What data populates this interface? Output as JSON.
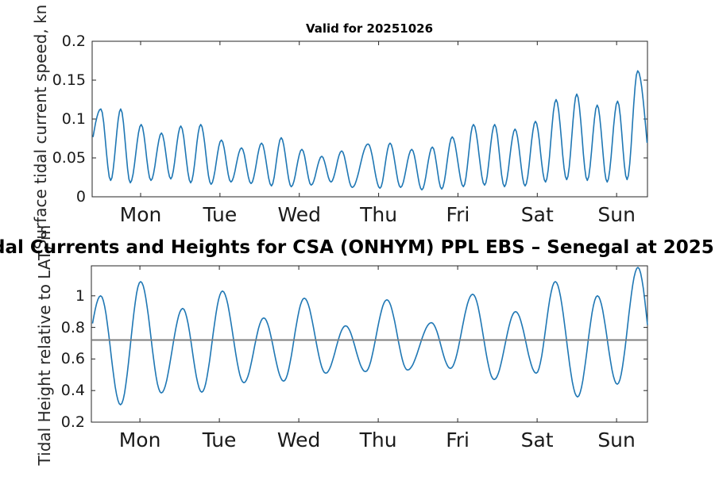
{
  "figure": {
    "main_title": "dal Currents and Heights for CSA (ONHYM) PPL EBS  – Senegal at 2025",
    "background": "#ffffff",
    "axis_color": "#262626",
    "text_color": "#1a1a1a"
  },
  "chart_data": [
    {
      "type": "line",
      "title": "Valid for 20251026",
      "ylabel": "Surface tidal current speed, kn",
      "xlim_days": [
        0,
        7
      ],
      "ylim": [
        0,
        0.2
      ],
      "yticks": [
        0,
        0.05,
        0.1,
        0.15,
        0.2
      ],
      "ytick_labels": [
        "0",
        "0.05",
        "0.1",
        "0.15",
        "0.2"
      ],
      "xtick_days": [
        0.611,
        1.611,
        2.611,
        3.611,
        4.611,
        5.611,
        6.611
      ],
      "xtick_labels": [
        "Mon",
        "Tue",
        "Wed",
        "Thu",
        "Fri",
        "Sat",
        "Sun"
      ],
      "grid": false,
      "legend": null,
      "line_color": "#1f77b4",
      "series": [
        {
          "name": "surface tidal current speed",
          "extrema_day_value": [
            [
              -0.12,
              0.02
            ],
            [
              0.11,
              0.113
            ],
            [
              0.233,
              0.021
            ],
            [
              0.36,
              0.113
            ],
            [
              0.481,
              0.018
            ],
            [
              0.618,
              0.093
            ],
            [
              0.741,
              0.021
            ],
            [
              0.874,
              0.082
            ],
            [
              0.991,
              0.023
            ],
            [
              1.118,
              0.091
            ],
            [
              1.242,
              0.018
            ],
            [
              1.369,
              0.093
            ],
            [
              1.499,
              0.016
            ],
            [
              1.629,
              0.073
            ],
            [
              1.749,
              0.019
            ],
            [
              1.883,
              0.063
            ],
            [
              2.003,
              0.017
            ],
            [
              2.136,
              0.069
            ],
            [
              2.26,
              0.014
            ],
            [
              2.383,
              0.076
            ],
            [
              2.51,
              0.013
            ],
            [
              2.644,
              0.061
            ],
            [
              2.761,
              0.015
            ],
            [
              2.894,
              0.052
            ],
            [
              3.011,
              0.019
            ],
            [
              3.145,
              0.059
            ],
            [
              3.278,
              0.012
            ],
            [
              3.478,
              0.068
            ],
            [
              3.628,
              0.011
            ],
            [
              3.755,
              0.069
            ],
            [
              3.888,
              0.012
            ],
            [
              4.029,
              0.061
            ],
            [
              4.156,
              0.009
            ],
            [
              4.289,
              0.064
            ],
            [
              4.406,
              0.01
            ],
            [
              4.539,
              0.077
            ],
            [
              4.68,
              0.013
            ],
            [
              4.807,
              0.093
            ],
            [
              4.947,
              0.015
            ],
            [
              5.074,
              0.093
            ],
            [
              5.197,
              0.013
            ],
            [
              5.331,
              0.087
            ],
            [
              5.458,
              0.014
            ],
            [
              5.588,
              0.097
            ],
            [
              5.715,
              0.019
            ],
            [
              5.848,
              0.125
            ],
            [
              5.982,
              0.022
            ],
            [
              6.109,
              0.132
            ],
            [
              6.242,
              0.021
            ],
            [
              6.366,
              0.118
            ],
            [
              6.492,
              0.019
            ],
            [
              6.623,
              0.123
            ],
            [
              6.743,
              0.022
            ],
            [
              6.877,
              0.162
            ],
            [
              7.08,
              0.015
            ]
          ]
        }
      ]
    },
    {
      "type": "line",
      "title": "",
      "ylabel": "Tidal Height relative to LAT, m",
      "xlim_days": [
        0,
        7
      ],
      "ylim": [
        0.2,
        1.19
      ],
      "yticks": [
        0.2,
        0.4,
        0.6,
        0.8,
        1.0
      ],
      "ytick_labels": [
        "0.2",
        "0.4",
        "0.6",
        "0.8",
        "1"
      ],
      "xtick_days": [
        0.611,
        1.611,
        2.611,
        3.611,
        4.611,
        5.611,
        6.611
      ],
      "xtick_labels": [
        "Mon",
        "Tue",
        "Wed",
        "Thu",
        "Fri",
        "Sat",
        "Sun"
      ],
      "grid": false,
      "legend": null,
      "line_color": "#1f77b4",
      "refline": {
        "value": 0.72,
        "color": "#7f7f7f"
      },
      "series": [
        {
          "name": "tidal height relative to LAT",
          "extrema_day_value": [
            [
              -0.12,
              0.55
            ],
            [
              0.117,
              1.0
            ],
            [
              0.367,
              0.31
            ],
            [
              0.62,
              1.09
            ],
            [
              0.88,
              0.385
            ],
            [
              1.15,
              0.92
            ],
            [
              1.39,
              0.39
            ],
            [
              1.65,
              1.03
            ],
            [
              1.92,
              0.45
            ],
            [
              2.17,
              0.86
            ],
            [
              2.42,
              0.46
            ],
            [
              2.68,
              0.985
            ],
            [
              2.95,
              0.51
            ],
            [
              3.2,
              0.81
            ],
            [
              3.45,
              0.52
            ],
            [
              3.72,
              0.975
            ],
            [
              3.98,
              0.53
            ],
            [
              4.28,
              0.83
            ],
            [
              4.52,
              0.54
            ],
            [
              4.8,
              1.01
            ],
            [
              5.07,
              0.47
            ],
            [
              5.34,
              0.9
            ],
            [
              5.6,
              0.51
            ],
            [
              5.84,
              1.09
            ],
            [
              6.12,
              0.36
            ],
            [
              6.37,
              1.0
            ],
            [
              6.62,
              0.44
            ],
            [
              6.88,
              1.18
            ],
            [
              7.12,
              0.45
            ]
          ]
        }
      ]
    }
  ]
}
